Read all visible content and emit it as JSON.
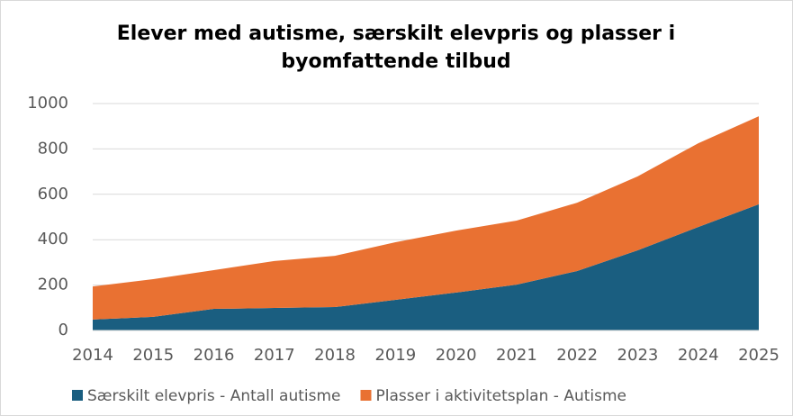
{
  "chart_data": {
    "type": "stacked_area",
    "title": "Elever med autisme, særskilt elevpris og plasser i byomfattende tilbud",
    "categories": [
      "2014",
      "2015",
      "2016",
      "2017",
      "2018",
      "2019",
      "2020",
      "2021",
      "2022",
      "2023",
      "2024",
      "2025"
    ],
    "series": [
      {
        "name": "Særskilt elevpris - Antall autisme",
        "color": "#1a5e80",
        "values": [
          48,
          60,
          95,
          99,
          103,
          135,
          167,
          202,
          262,
          353,
          456,
          556
        ]
      },
      {
        "name": "Plasser i aktivitetsplan - Autisme",
        "color": "#e97132",
        "values": [
          146,
          166,
          171,
          207,
          226,
          254,
          273,
          282,
          301,
          326,
          369,
          388
        ]
      }
    ],
    "ylim": [
      0,
      1000
    ],
    "yticks": [
      0,
      200,
      400,
      600,
      800,
      1000
    ],
    "grid": true,
    "legend": "bottom"
  }
}
